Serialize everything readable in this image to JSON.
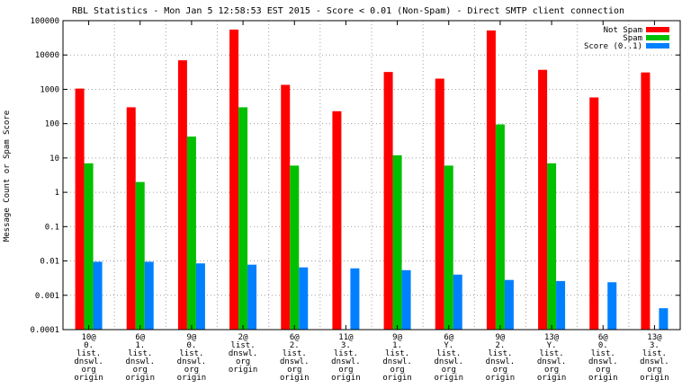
{
  "chart_data": {
    "type": "bar",
    "title": "RBL Statistics - Mon Jan  5 12:58:53 EST 2015 - Score < 0.01 (Non-Spam) - Direct SMTP client connection",
    "xlabel": "",
    "ylabel": "Message Count or Spam Score",
    "yscale": "log",
    "ylim": [
      0.0001,
      100000
    ],
    "yticks": [
      "0.0001",
      "0.001",
      "0.01",
      "0.1",
      "1",
      "10",
      "100",
      "1000",
      "10000",
      "100000"
    ],
    "grid": true,
    "legend_position": "top-right",
    "categories": [
      [
        "10@",
        "0.",
        "list.",
        "dnswl.",
        "org",
        "origin"
      ],
      [
        "6@",
        "1.",
        "list.",
        "dnswl.",
        "org",
        "origin"
      ],
      [
        "9@",
        "0.",
        "list.",
        "dnswl.",
        "org",
        "origin"
      ],
      [
        "2@",
        "list.",
        "dnswl.",
        "org",
        "origin"
      ],
      [
        "6@",
        "2.",
        "list.",
        "dnswl.",
        "org",
        "origin"
      ],
      [
        "11@",
        "3.",
        "list.",
        "dnswl.",
        "org",
        "origin"
      ],
      [
        "9@",
        "1.",
        "list.",
        "dnswl.",
        "org",
        "origin"
      ],
      [
        "6@",
        "Y.",
        "list.",
        "dnswl.",
        "org",
        "origin"
      ],
      [
        "9@",
        "2.",
        "list.",
        "dnswl.",
        "org",
        "origin"
      ],
      [
        "13@",
        "Y.",
        "list.",
        "dnswl.",
        "org",
        "origin"
      ],
      [
        "6@",
        "0.",
        "list.",
        "dnswl.",
        "org",
        "origin"
      ],
      [
        "13@",
        "3.",
        "list.",
        "dnswl.",
        "org",
        "origin"
      ]
    ],
    "series": [
      {
        "name": "Not Spam",
        "color": "#ff0000",
        "values": [
          1050,
          300,
          7000,
          55000,
          1350,
          230,
          3200,
          2050,
          52000,
          3700,
          580,
          3100
        ]
      },
      {
        "name": "Spam",
        "color": "#00c000",
        "values": [
          7,
          2,
          42,
          300,
          6,
          null,
          12,
          6,
          95,
          7,
          null,
          null
        ]
      },
      {
        "name": "Score (0..1)",
        "color": "#0080ff",
        "values": [
          0.0095,
          0.0095,
          0.0085,
          0.0078,
          0.0065,
          0.0061,
          0.0054,
          0.004,
          0.0028,
          0.0026,
          0.0024,
          0.00042
        ]
      }
    ]
  }
}
